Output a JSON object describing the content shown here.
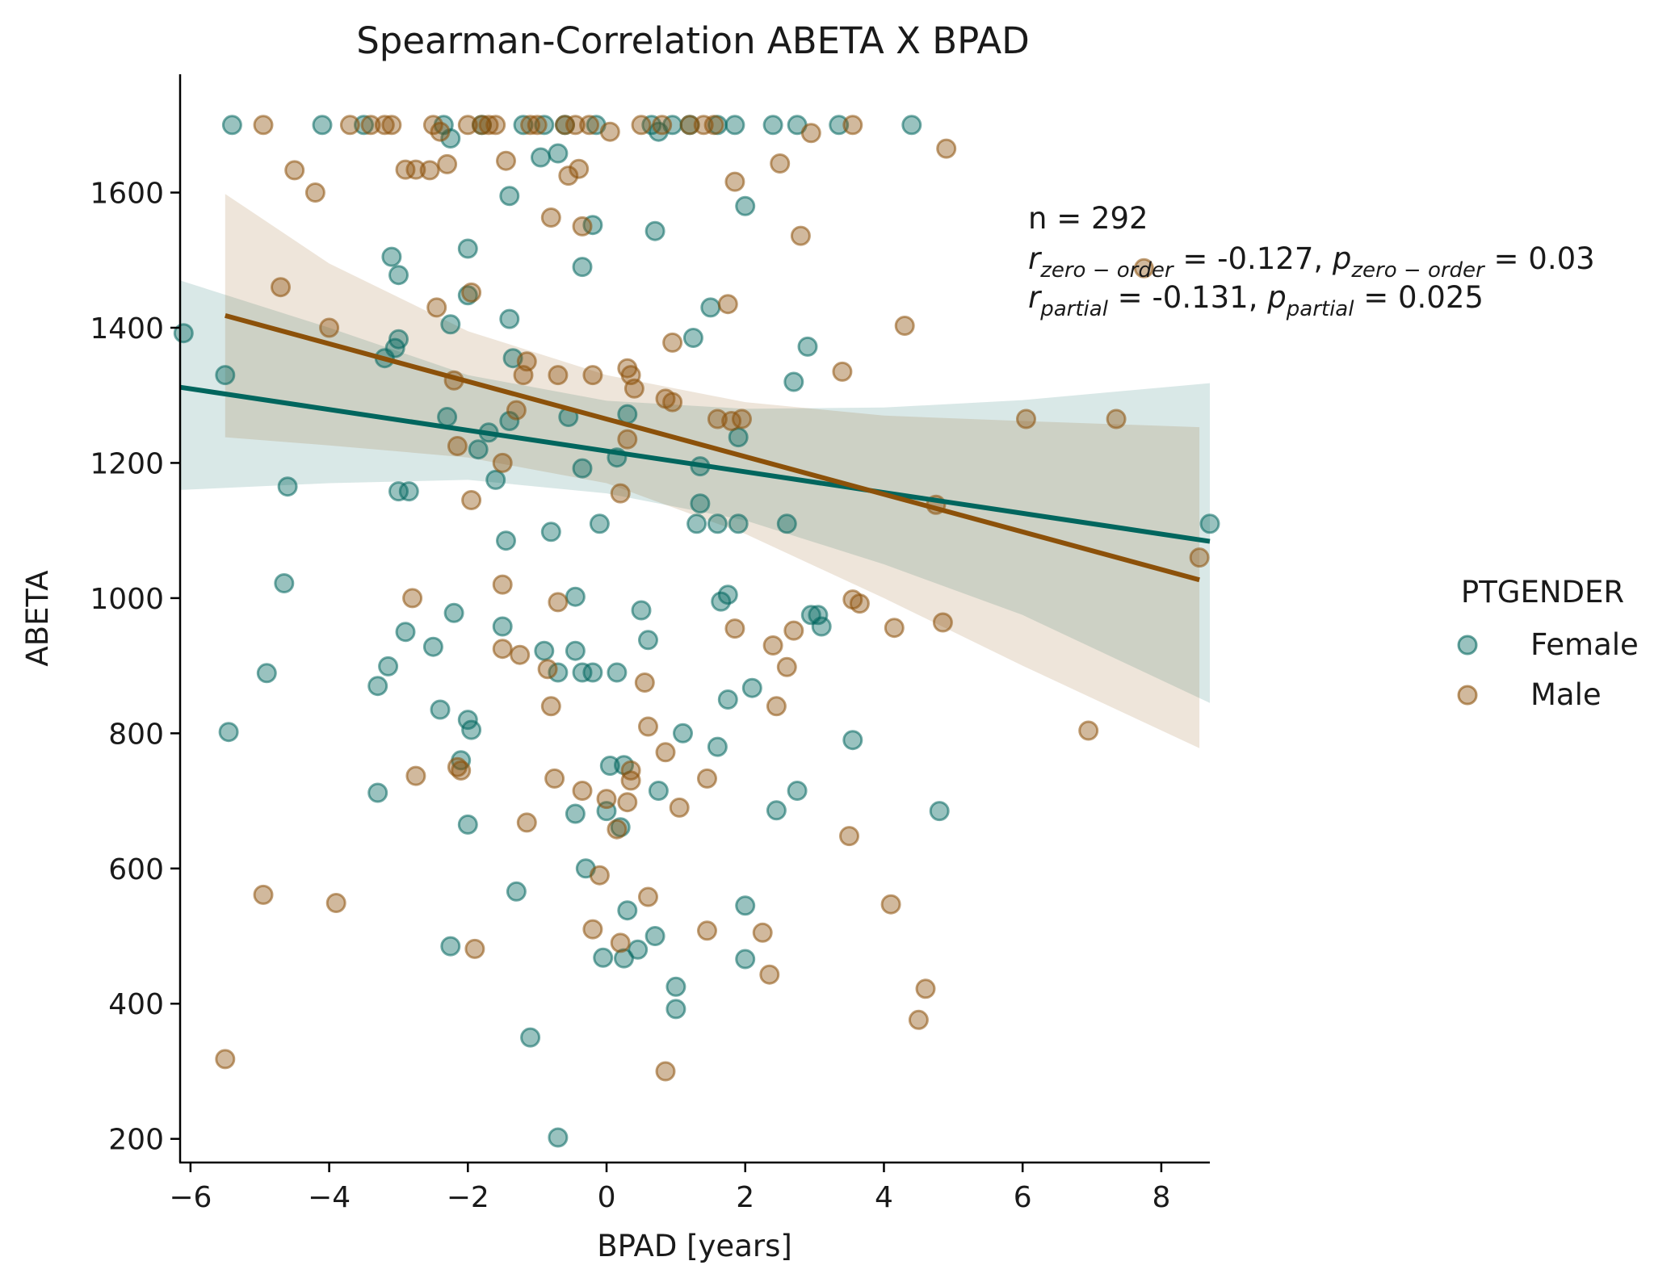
{
  "chart_data": {
    "type": "scatter",
    "title": "Spearman-Correlation ABETA X BPAD",
    "xlabel": "BPAD [years]",
    "ylabel": "ABETA",
    "xlim": [
      -6.15,
      8.7
    ],
    "ylim": [
      165,
      1775
    ],
    "xticks": [
      -6,
      -4,
      -2,
      0,
      2,
      4,
      6,
      8
    ],
    "xtick_labels": [
      "−6",
      "−4",
      "−2",
      "0",
      "2",
      "4",
      "6",
      "8"
    ],
    "yticks": [
      200,
      400,
      600,
      800,
      1000,
      1200,
      1400,
      1600
    ],
    "ytick_labels": [
      "200",
      "400",
      "600",
      "800",
      "1000",
      "1200",
      "1400",
      "1600"
    ],
    "grid": false,
    "legend": {
      "title": "PTGENDER",
      "placement": "right",
      "entries": [
        "Female",
        "Male"
      ]
    },
    "annotation": {
      "n_line": "n = 292",
      "zero_order_r": "-0.127",
      "zero_order_p": "0.03",
      "partial_r": "-0.131",
      "partial_p": "0.025"
    },
    "series": [
      {
        "name": "Female",
        "color": "#01665e",
        "points": [
          [
            -6.1,
            1392
          ],
          [
            -5.5,
            1330
          ],
          [
            -5.4,
            1700
          ],
          [
            -5.45,
            802
          ],
          [
            -4.9,
            889
          ],
          [
            -4.6,
            1165
          ],
          [
            -4.65,
            1022
          ],
          [
            -4.1,
            1700
          ],
          [
            -3.5,
            1700
          ],
          [
            -3.3,
            870
          ],
          [
            -3.3,
            712
          ],
          [
            -3.2,
            1355
          ],
          [
            -3.15,
            899
          ],
          [
            -3.1,
            1505
          ],
          [
            -3.05,
            1370
          ],
          [
            -3.0,
            1383
          ],
          [
            -3.0,
            1478
          ],
          [
            -3.0,
            1158
          ],
          [
            -2.9,
            950
          ],
          [
            -2.85,
            1158
          ],
          [
            -2.5,
            928
          ],
          [
            -2.4,
            835
          ],
          [
            -2.35,
            1700
          ],
          [
            -2.3,
            1268
          ],
          [
            -2.25,
            1680
          ],
          [
            -2.25,
            1405
          ],
          [
            -2.2,
            978
          ],
          [
            -2.25,
            485
          ],
          [
            -2.1,
            760
          ],
          [
            -2.0,
            1448
          ],
          [
            -2.0,
            1517
          ],
          [
            -2.0,
            820
          ],
          [
            -1.95,
            805
          ],
          [
            -2.0,
            665
          ],
          [
            -1.85,
            1220
          ],
          [
            -1.8,
            1700
          ],
          [
            -1.7,
            1245
          ],
          [
            -1.6,
            1175
          ],
          [
            -1.5,
            958
          ],
          [
            -1.45,
            1085
          ],
          [
            -1.4,
            1262
          ],
          [
            -1.4,
            1595
          ],
          [
            -1.4,
            1413
          ],
          [
            -1.35,
            1355
          ],
          [
            -1.3,
            566
          ],
          [
            -1.2,
            1700
          ],
          [
            -1.1,
            350
          ],
          [
            -0.95,
            1652
          ],
          [
            -0.9,
            1700
          ],
          [
            -0.9,
            922
          ],
          [
            -0.8,
            1098
          ],
          [
            -0.7,
            1658
          ],
          [
            -0.7,
            890
          ],
          [
            -0.7,
            202
          ],
          [
            -0.6,
            1700
          ],
          [
            -0.55,
            1268
          ],
          [
            -0.45,
            1002
          ],
          [
            -0.45,
            922
          ],
          [
            -0.45,
            681
          ],
          [
            -0.35,
            1490
          ],
          [
            -0.35,
            1192
          ],
          [
            -0.35,
            890
          ],
          [
            -0.3,
            600
          ],
          [
            -0.2,
            1552
          ],
          [
            -0.2,
            890
          ],
          [
            -0.15,
            1700
          ],
          [
            -0.1,
            1110
          ],
          [
            -0.05,
            468
          ],
          [
            0.0,
            685
          ],
          [
            0.05,
            752
          ],
          [
            0.15,
            1208
          ],
          [
            0.15,
            890
          ],
          [
            0.2,
            661
          ],
          [
            0.25,
            753
          ],
          [
            0.25,
            467
          ],
          [
            0.3,
            1272
          ],
          [
            0.3,
            538
          ],
          [
            0.45,
            480
          ],
          [
            0.5,
            982
          ],
          [
            0.6,
            938
          ],
          [
            0.65,
            1700
          ],
          [
            0.7,
            1543
          ],
          [
            0.7,
            500
          ],
          [
            0.75,
            715
          ],
          [
            0.75,
            1690
          ],
          [
            0.95,
            1700
          ],
          [
            1.0,
            425
          ],
          [
            1.0,
            392
          ],
          [
            1.1,
            800
          ],
          [
            1.2,
            1700
          ],
          [
            1.25,
            1385
          ],
          [
            1.3,
            1110
          ],
          [
            1.35,
            1195
          ],
          [
            1.35,
            1140
          ],
          [
            1.5,
            1430
          ],
          [
            1.6,
            1700
          ],
          [
            1.6,
            1110
          ],
          [
            1.6,
            780
          ],
          [
            1.65,
            995
          ],
          [
            1.75,
            1005
          ],
          [
            1.75,
            850
          ],
          [
            1.85,
            1700
          ],
          [
            1.9,
            1238
          ],
          [
            1.9,
            1110
          ],
          [
            2.0,
            1580
          ],
          [
            2.0,
            545
          ],
          [
            2.0,
            466
          ],
          [
            2.1,
            867
          ],
          [
            2.4,
            1700
          ],
          [
            2.45,
            686
          ],
          [
            2.6,
            1110
          ],
          [
            2.7,
            1320
          ],
          [
            2.75,
            1700
          ],
          [
            2.75,
            715
          ],
          [
            2.9,
            1372
          ],
          [
            2.95,
            975
          ],
          [
            3.05,
            975
          ],
          [
            3.1,
            958
          ],
          [
            3.35,
            1700
          ],
          [
            3.55,
            790
          ],
          [
            4.4,
            1700
          ],
          [
            4.8,
            685
          ],
          [
            8.7,
            1110
          ]
        ],
        "regression": {
          "x": [
            -6.15,
            8.7
          ],
          "y": [
            1312,
            1084
          ]
        },
        "ci_band": {
          "x": [
            -6.15,
            -4,
            -2,
            0,
            2,
            4,
            6,
            8.7
          ],
          "lower": [
            1160,
            1170,
            1175,
            1155,
            1115,
            1050,
            975,
            845
          ],
          "upper": [
            1470,
            1400,
            1330,
            1292,
            1280,
            1282,
            1293,
            1318
          ]
        }
      },
      {
        "name": "Male",
        "color": "#8c510a",
        "points": [
          [
            -5.5,
            318
          ],
          [
            -4.95,
            1700
          ],
          [
            -4.95,
            561
          ],
          [
            -4.5,
            1633
          ],
          [
            -4.2,
            1600
          ],
          [
            -4.7,
            1460
          ],
          [
            -4.0,
            1400
          ],
          [
            -3.9,
            549
          ],
          [
            -3.7,
            1700
          ],
          [
            -3.4,
            1700
          ],
          [
            -3.2,
            1700
          ],
          [
            -3.1,
            1700
          ],
          [
            -2.9,
            1634
          ],
          [
            -2.75,
            1634
          ],
          [
            -2.8,
            1000
          ],
          [
            -2.75,
            737
          ],
          [
            -2.5,
            1700
          ],
          [
            -2.55,
            1633
          ],
          [
            -2.45,
            1430
          ],
          [
            -2.4,
            1690
          ],
          [
            -2.3,
            1642
          ],
          [
            -2.2,
            1322
          ],
          [
            -2.15,
            1225
          ],
          [
            -2.15,
            750
          ],
          [
            -2.1,
            745
          ],
          [
            -2.0,
            1700
          ],
          [
            -1.95,
            1452
          ],
          [
            -1.95,
            1145
          ],
          [
            -1.9,
            481
          ],
          [
            -1.8,
            1700
          ],
          [
            -1.7,
            1700
          ],
          [
            -1.6,
            1700
          ],
          [
            -1.5,
            1200
          ],
          [
            -1.5,
            1020
          ],
          [
            -1.5,
            925
          ],
          [
            -1.45,
            1647
          ],
          [
            -1.3,
            1278
          ],
          [
            -1.25,
            916
          ],
          [
            -1.2,
            1330
          ],
          [
            -1.15,
            1350
          ],
          [
            -1.15,
            668
          ],
          [
            -1.1,
            1700
          ],
          [
            -1.0,
            1700
          ],
          [
            -0.85,
            895
          ],
          [
            -0.8,
            1563
          ],
          [
            -0.8,
            840
          ],
          [
            -0.75,
            733
          ],
          [
            -0.7,
            1330
          ],
          [
            -0.7,
            994
          ],
          [
            -0.6,
            1700
          ],
          [
            -0.55,
            1625
          ],
          [
            -0.45,
            1700
          ],
          [
            -0.4,
            1635
          ],
          [
            -0.35,
            1550
          ],
          [
            -0.35,
            715
          ],
          [
            -0.25,
            1700
          ],
          [
            -0.2,
            1330
          ],
          [
            -0.2,
            510
          ],
          [
            -0.1,
            590
          ],
          [
            0.0,
            703
          ],
          [
            0.05,
            1690
          ],
          [
            0.15,
            658
          ],
          [
            0.2,
            1155
          ],
          [
            0.2,
            490
          ],
          [
            0.3,
            1340
          ],
          [
            0.3,
            1235
          ],
          [
            0.3,
            698
          ],
          [
            0.35,
            1330
          ],
          [
            0.35,
            745
          ],
          [
            0.35,
            730
          ],
          [
            0.4,
            1310
          ],
          [
            0.5,
            1700
          ],
          [
            0.55,
            875
          ],
          [
            0.6,
            810
          ],
          [
            0.6,
            558
          ],
          [
            0.8,
            1700
          ],
          [
            0.85,
            1295
          ],
          [
            0.85,
            772
          ],
          [
            0.85,
            300
          ],
          [
            0.95,
            1290
          ],
          [
            0.95,
            1378
          ],
          [
            1.05,
            690
          ],
          [
            1.2,
            1700
          ],
          [
            1.4,
            1700
          ],
          [
            1.45,
            733
          ],
          [
            1.45,
            508
          ],
          [
            1.55,
            1700
          ],
          [
            1.6,
            1265
          ],
          [
            1.75,
            1435
          ],
          [
            1.8,
            1262
          ],
          [
            1.85,
            1616
          ],
          [
            1.85,
            955
          ],
          [
            1.95,
            1265
          ],
          [
            2.25,
            505
          ],
          [
            2.35,
            443
          ],
          [
            2.4,
            930
          ],
          [
            2.45,
            840
          ],
          [
            2.5,
            1643
          ],
          [
            2.6,
            898
          ],
          [
            2.7,
            952
          ],
          [
            2.8,
            1536
          ],
          [
            2.95,
            1688
          ],
          [
            3.4,
            1335
          ],
          [
            3.5,
            648
          ],
          [
            3.55,
            1700
          ],
          [
            3.55,
            998
          ],
          [
            3.65,
            992
          ],
          [
            4.1,
            547
          ],
          [
            4.15,
            956
          ],
          [
            4.3,
            1403
          ],
          [
            4.5,
            376
          ],
          [
            4.6,
            422
          ],
          [
            4.75,
            1138
          ],
          [
            4.85,
            964
          ],
          [
            4.9,
            1665
          ],
          [
            6.05,
            1265
          ],
          [
            6.95,
            804
          ],
          [
            7.35,
            1265
          ],
          [
            7.75,
            1488
          ],
          [
            8.55,
            1060
          ]
        ],
        "regression": {
          "x": [
            -5.5,
            8.55
          ],
          "y": [
            1418,
            1027
          ]
        },
        "ci_band": {
          "x": [
            -5.5,
            -4,
            -2,
            0,
            2,
            4,
            6,
            8.55
          ],
          "lower": [
            1238,
            1226,
            1208,
            1170,
            1095,
            1000,
            900,
            778
          ],
          "upper": [
            1598,
            1495,
            1395,
            1330,
            1290,
            1270,
            1262,
            1253
          ]
        }
      }
    ]
  }
}
